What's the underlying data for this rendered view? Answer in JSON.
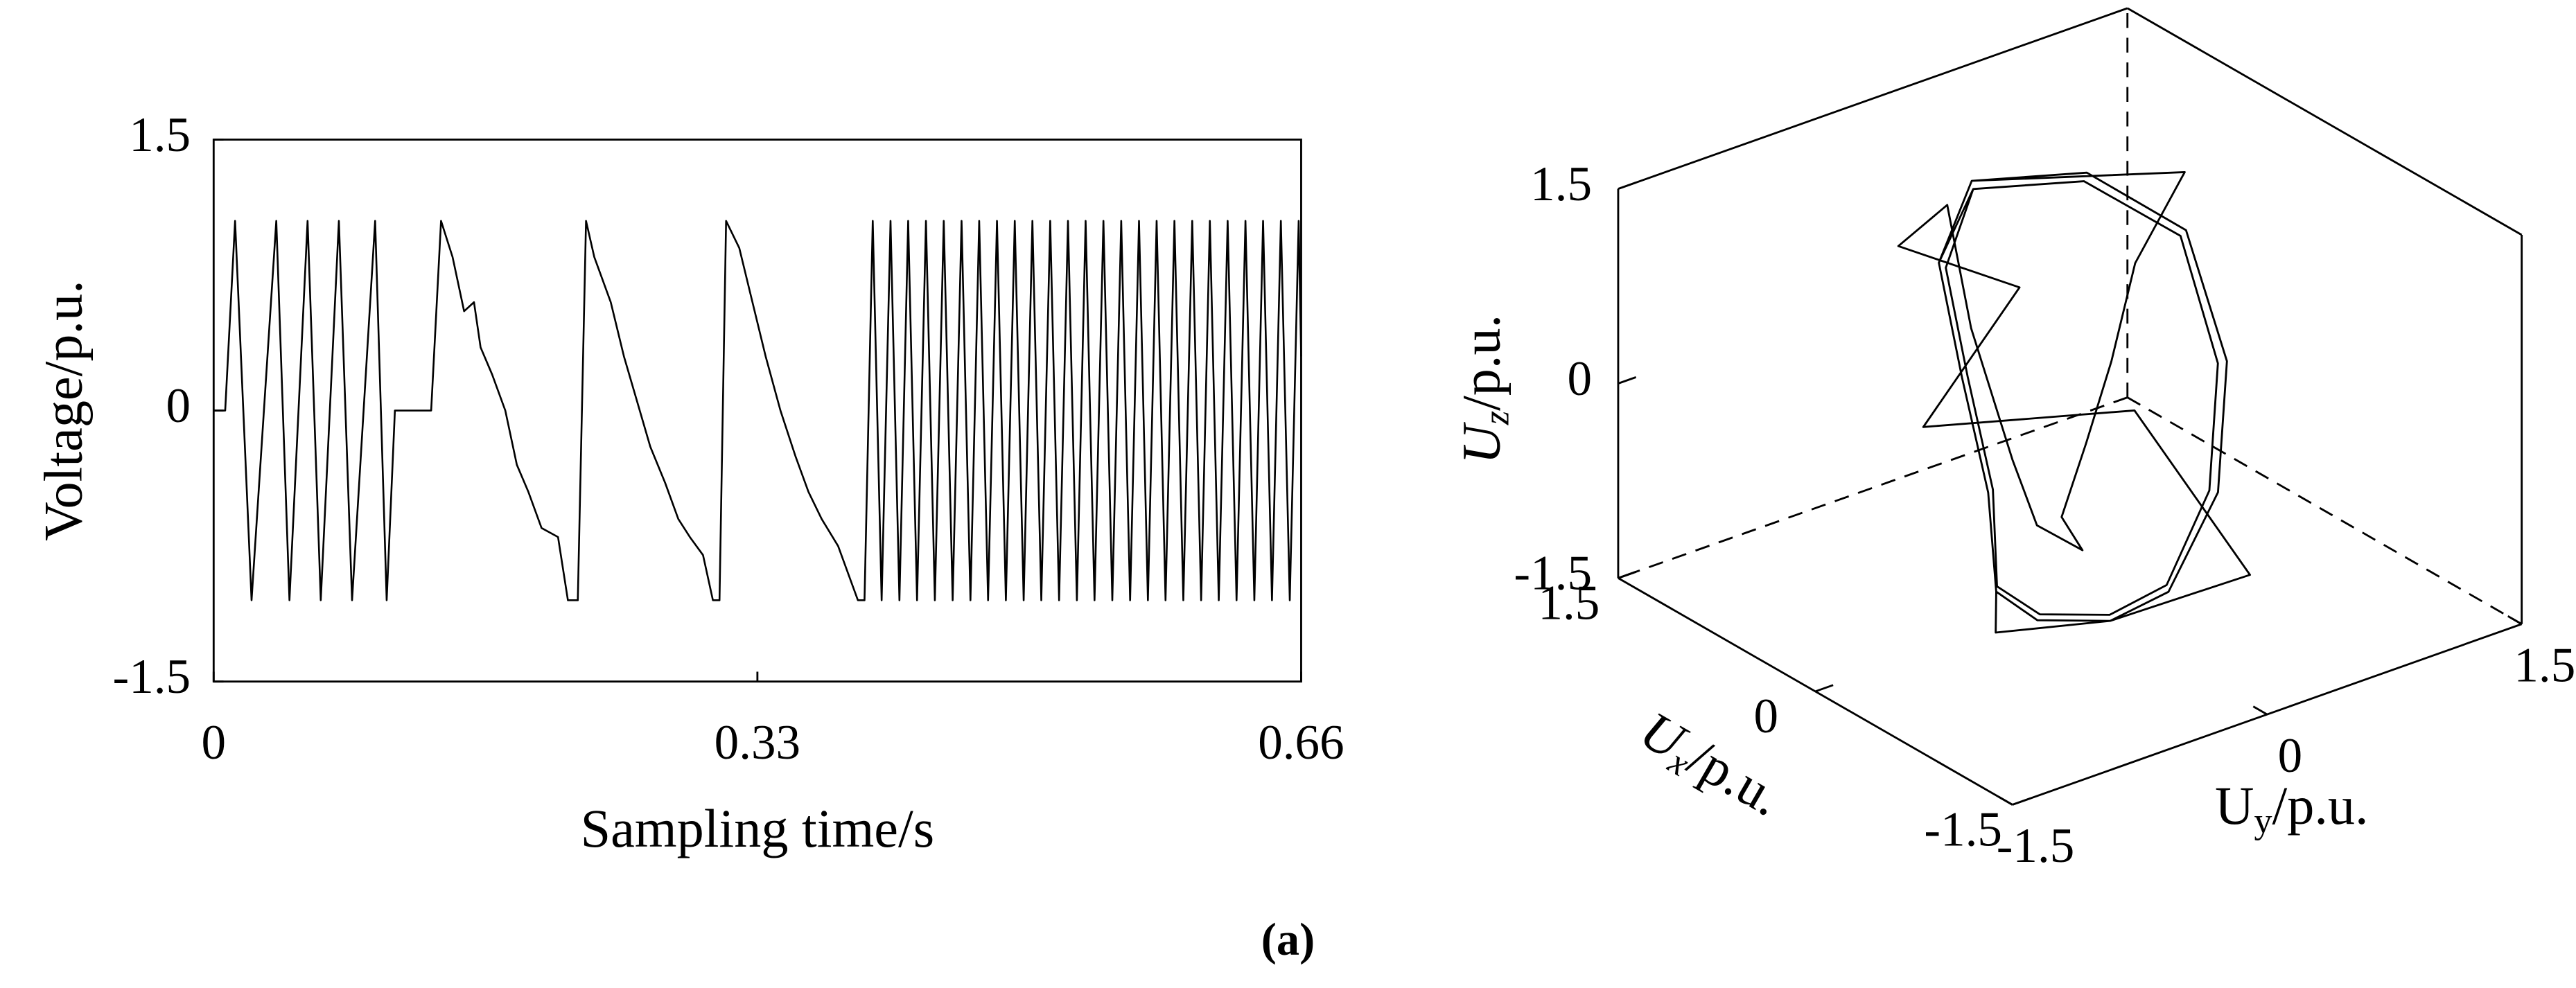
{
  "caption": "(a)",
  "chart_data": [
    {
      "type": "line",
      "xlabel": "Sampling time/s",
      "ylabel": "Voltage/p.u.",
      "xlim": [
        0,
        0.66
      ],
      "ylim": [
        -1.5,
        1.5
      ],
      "xticks": [
        0,
        0.33,
        0.66
      ],
      "yticks": [
        -1.5,
        0,
        1.5
      ],
      "x": [
        0,
        0.007,
        0.013,
        0.023,
        0.038,
        0.046,
        0.057,
        0.065,
        0.076,
        0.084,
        0.098,
        0.105,
        0.11,
        0.132,
        0.138,
        0.145,
        0.152,
        0.158,
        0.162,
        0.169,
        0.177,
        0.184,
        0.191,
        0.199,
        0.209,
        0.215,
        0.221,
        0.226,
        0.231,
        0.241,
        0.249,
        0.257,
        0.265,
        0.274,
        0.282,
        0.289,
        0.297,
        0.303,
        0.307,
        0.311,
        0.319,
        0.327,
        0.335,
        0.344,
        0.353,
        0.361,
        0.369,
        0.379,
        0.387,
        0.391,
        0.395,
        0.4,
        0.4054,
        0.4108,
        0.4162,
        0.4215,
        0.4269,
        0.4323,
        0.4377,
        0.4431,
        0.4485,
        0.4539,
        0.4593,
        0.4646,
        0.47,
        0.4754,
        0.4808,
        0.4862,
        0.4916,
        0.4969,
        0.5023,
        0.5077,
        0.5131,
        0.5185,
        0.5239,
        0.5292,
        0.5346,
        0.54,
        0.5454,
        0.5508,
        0.5562,
        0.5616,
        0.567,
        0.5723,
        0.5777,
        0.5831,
        0.5885,
        0.5939,
        0.5993,
        0.6046,
        0.61,
        0.6154,
        0.6208,
        0.6262,
        0.6316,
        0.6369,
        0.6423,
        0.6477,
        0.6531,
        0.6585,
        0.66
      ],
      "series": [
        {
          "color": "#000000",
          "values": [
            0,
            0,
            1.05,
            -1.05,
            1.05,
            -1.05,
            1.05,
            -1.05,
            1.05,
            -1.05,
            1.05,
            -1.05,
            0,
            0,
            1.05,
            0.85,
            0.55,
            0.6,
            0.35,
            0.2,
            0,
            -0.3,
            -0.45,
            -0.65,
            -0.7,
            -1.05,
            -1.05,
            1.05,
            0.85,
            0.6,
            0.3,
            0.05,
            -0.2,
            -0.4,
            -0.6,
            -0.7,
            -0.8,
            -1.05,
            -1.05,
            1.05,
            0.9,
            0.6,
            0.3,
            0,
            -0.25,
            -0.45,
            -0.6,
            -0.75,
            -0.95,
            -1.05,
            -1.05,
            1.05,
            -1.05,
            1.05,
            -1.05,
            1.05,
            -1.05,
            1.05,
            -1.05,
            1.05,
            -1.05,
            1.05,
            -1.05,
            1.05,
            -1.05,
            1.05,
            -1.05,
            1.05,
            -1.05,
            1.05,
            -1.05,
            1.05,
            -1.05,
            1.05,
            -1.05,
            1.05,
            -1.05,
            1.05,
            -1.05,
            1.05,
            -1.05,
            1.05,
            -1.05,
            1.05,
            -1.05,
            1.05,
            -1.05,
            1.05,
            -1.05,
            1.05,
            -1.05,
            1.05,
            -1.05,
            1.05,
            -1.05,
            1.05,
            -1.05,
            1.05,
            -1.05,
            1.05,
            0.3
          ]
        }
      ]
    },
    {
      "type": "line3d",
      "color": "#000000",
      "xlabel": {
        "symbol": "U",
        "subscript": "x",
        "unit": "/p.u."
      },
      "ylabel": {
        "symbol": "U",
        "subscript": "y",
        "unit": "/p.u."
      },
      "zlabel": {
        "symbol": "U",
        "subscript": "z",
        "unit": "/p.u."
      },
      "xlim": [
        -1.5,
        1.5
      ],
      "ylim": [
        -1.5,
        1.5
      ],
      "zlim": [
        -1.5,
        1.5
      ],
      "xticks": [
        -1.5,
        0,
        1.5
      ],
      "yticks": [
        -1.5,
        0,
        1.5
      ],
      "zticks": [
        -1.5,
        0,
        1.5
      ],
      "x": [
        1.07,
        0.75,
        0.15,
        -0.51,
        -0.92,
        -1.06,
        -0.81,
        -0.54,
        -0.24,
        0.17,
        0.55,
        0.92,
        1.07,
        0.47,
        0.24,
        -0.07,
        -0.24,
        -0.35,
        -0.47,
        -0.24,
        0.05,
        0.61,
        1.05,
        1.28,
        0.59,
        0.47,
        -0.22,
        -1.37,
        -0.81,
        -0.52,
        -0.24,
        0.17,
        0.55,
        0.92,
        1.02,
        0.72,
        0.14,
        -0.48,
        -0.88,
        -1.02,
        -0.78,
        -0.52,
        -0.22,
        0.16,
        0.52,
        0.88,
        1.02
      ],
      "y": [
        0.25,
        0.68,
        0.8,
        0.53,
        0.16,
        -0.24,
        -0.39,
        -0.61,
        -0.62,
        -0.35,
        -0.21,
        -0.06,
        0.25,
        1.04,
        0.57,
        0.19,
        -0.09,
        -0.32,
        -0.29,
        -0.38,
        -0.3,
        -0.11,
        0.09,
        -0.02,
        0.16,
        -0.5,
        0.21,
        0.0,
        -0.39,
        -0.84,
        -0.62,
        -0.35,
        -0.21,
        -0.06,
        0.22,
        0.64,
        0.76,
        0.5,
        0.14,
        -0.22,
        -0.37,
        -0.58,
        -0.6,
        -0.33,
        -0.2,
        -0.05,
        0.22
      ],
      "z": [
        1.0,
        1.05,
        0.9,
        0.4,
        -0.2,
        -0.7,
        -1.0,
        -1.05,
        -1.0,
        -0.6,
        0,
        0.6,
        1.0,
        1.05,
        0.7,
        0.3,
        -0.1,
        -0.5,
        -0.7,
        -0.6,
        -0.3,
        0.3,
        0.9,
        0.5,
        0.5,
        -0.2,
        0,
        -0.5,
        -1.0,
        -1.05,
        -1.0,
        -0.6,
        0,
        0.6,
        0.98,
        1.02,
        0.88,
        0.38,
        -0.2,
        -0.68,
        -0.98,
        -1.03,
        -0.98,
        -0.58,
        0.02,
        0.58,
        0.98
      ]
    }
  ]
}
